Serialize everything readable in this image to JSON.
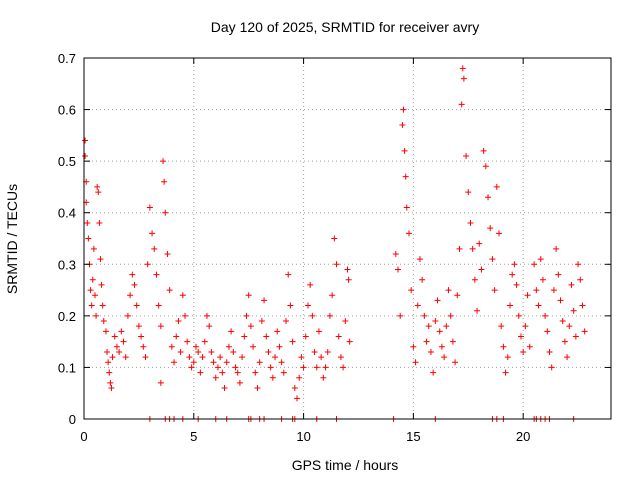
{
  "chart_data": {
    "type": "scatter",
    "title": "Day 120 of 2025, SRMTID for receiver avry",
    "xlabel": "GPS time / hours",
    "ylabel": "SRMTID / TECUs",
    "xlim": [
      0,
      24
    ],
    "ylim": [
      0,
      0.7
    ],
    "xticks": [
      0,
      5,
      10,
      15,
      20
    ],
    "yticks": [
      0,
      0.1,
      0.2,
      0.3,
      0.4,
      0.5,
      0.6,
      0.7
    ],
    "xtick_labels": [
      "0",
      "5",
      "10",
      "15",
      "20"
    ],
    "ytick_labels": [
      "0",
      "0.1",
      "0.2",
      "0.3",
      "0.4",
      "0.5",
      "0.6",
      "0.7"
    ],
    "grid": true,
    "marker": "+",
    "color": "#ff0000",
    "gap_hours": [
      12.2,
      14.1
    ],
    "series": [
      {
        "name": "SRMTID",
        "points": [
          [
            0.05,
            0.54
          ],
          [
            0.05,
            0.51
          ],
          [
            0.1,
            0.46
          ],
          [
            0.1,
            0.42
          ],
          [
            0.15,
            0.38
          ],
          [
            0.2,
            0.35
          ],
          [
            0.25,
            0.3
          ],
          [
            0.3,
            0.25
          ],
          [
            0.35,
            0.22
          ],
          [
            0.4,
            0.27
          ],
          [
            0.45,
            0.33
          ],
          [
            0.5,
            0.24
          ],
          [
            0.55,
            0.2
          ],
          [
            0.6,
            0.45
          ],
          [
            0.65,
            0.44
          ],
          [
            0.7,
            0.38
          ],
          [
            0.75,
            0.31
          ],
          [
            0.8,
            0.26
          ],
          [
            0.85,
            0.22
          ],
          [
            0.9,
            0.19
          ],
          [
            1.0,
            0.17
          ],
          [
            1.05,
            0.13
          ],
          [
            1.1,
            0.11
          ],
          [
            1.15,
            0.09
          ],
          [
            1.2,
            0.07
          ],
          [
            1.25,
            0.06
          ],
          [
            1.3,
            0.12
          ],
          [
            1.4,
            0.16
          ],
          [
            1.5,
            0.14
          ],
          [
            1.6,
            0.13
          ],
          [
            1.7,
            0.17
          ],
          [
            1.8,
            0.15
          ],
          [
            1.9,
            0.12
          ],
          [
            2.0,
            0.2
          ],
          [
            2.1,
            0.24
          ],
          [
            2.2,
            0.28
          ],
          [
            2.3,
            0.26
          ],
          [
            2.4,
            0.22
          ],
          [
            2.5,
            0.18
          ],
          [
            2.6,
            0.16
          ],
          [
            2.7,
            0.14
          ],
          [
            2.8,
            0.12
          ],
          [
            2.9,
            0.3
          ],
          [
            3.0,
            0.41
          ],
          [
            3.1,
            0.36
          ],
          [
            3.2,
            0.33
          ],
          [
            3.3,
            0.28
          ],
          [
            3.4,
            0.22
          ],
          [
            3.5,
            0.18
          ],
          [
            3.5,
            0.07
          ],
          [
            3.6,
            0.5
          ],
          [
            3.65,
            0.46
          ],
          [
            3.7,
            0.4
          ],
          [
            3.8,
            0.32
          ],
          [
            3.9,
            0.25
          ],
          [
            4.0,
            0.14
          ],
          [
            4.1,
            0.11
          ],
          [
            4.2,
            0.16
          ],
          [
            4.3,
            0.19
          ],
          [
            4.4,
            0.13
          ],
          [
            4.5,
            0.24
          ],
          [
            4.6,
            0.2
          ],
          [
            4.7,
            0.15
          ],
          [
            4.8,
            0.12
          ],
          [
            4.9,
            0.1
          ],
          [
            5.0,
            0.11
          ],
          [
            5.1,
            0.14
          ],
          [
            5.2,
            0.13
          ],
          [
            5.3,
            0.09
          ],
          [
            5.4,
            0.12
          ],
          [
            5.5,
            0.15
          ],
          [
            5.6,
            0.2
          ],
          [
            5.7,
            0.18
          ],
          [
            5.8,
            0.13
          ],
          [
            5.9,
            0.11
          ],
          [
            6.0,
            0.08
          ],
          [
            6.1,
            0.1
          ],
          [
            6.2,
            0.12
          ],
          [
            6.3,
            0.09
          ],
          [
            6.4,
            0.06
          ],
          [
            6.5,
            0.11
          ],
          [
            6.6,
            0.14
          ],
          [
            6.7,
            0.17
          ],
          [
            6.8,
            0.13
          ],
          [
            6.9,
            0.1
          ],
          [
            7.0,
            0.09
          ],
          [
            7.1,
            0.07
          ],
          [
            7.2,
            0.12
          ],
          [
            7.3,
            0.16
          ],
          [
            7.4,
            0.2
          ],
          [
            7.5,
            0.24
          ],
          [
            7.6,
            0.18
          ],
          [
            7.7,
            0.14
          ],
          [
            7.8,
            0.09
          ],
          [
            7.9,
            0.06
          ],
          [
            8.0,
            0.11
          ],
          [
            8.1,
            0.19
          ],
          [
            8.2,
            0.23
          ],
          [
            8.3,
            0.16
          ],
          [
            8.4,
            0.13
          ],
          [
            8.5,
            0.1
          ],
          [
            8.6,
            0.08
          ],
          [
            8.7,
            0.12
          ],
          [
            8.8,
            0.17
          ],
          [
            8.9,
            0.14
          ],
          [
            9.0,
            0.11
          ],
          [
            9.1,
            0.09
          ],
          [
            9.2,
            0.19
          ],
          [
            9.3,
            0.28
          ],
          [
            9.4,
            0.22
          ],
          [
            9.5,
            0.15
          ],
          [
            9.6,
            0.06
          ],
          [
            9.7,
            0.04
          ],
          [
            9.8,
            0.08
          ],
          [
            9.9,
            0.12
          ],
          [
            10.0,
            0.1
          ],
          [
            10.1,
            0.16
          ],
          [
            10.2,
            0.22
          ],
          [
            10.3,
            0.26
          ],
          [
            10.4,
            0.2
          ],
          [
            10.5,
            0.13
          ],
          [
            10.6,
            0.1
          ],
          [
            10.7,
            0.17
          ],
          [
            10.8,
            0.12
          ],
          [
            10.9,
            0.08
          ],
          [
            11.0,
            0.1
          ],
          [
            11.1,
            0.13
          ],
          [
            11.2,
            0.2
          ],
          [
            11.3,
            0.24
          ],
          [
            11.4,
            0.35
          ],
          [
            11.5,
            0.3
          ],
          [
            11.6,
            0.16
          ],
          [
            11.7,
            0.12
          ],
          [
            11.8,
            0.1
          ],
          [
            11.9,
            0.19
          ],
          [
            12.0,
            0.29
          ],
          [
            12.05,
            0.27
          ],
          [
            12.1,
            0.15
          ],
          [
            14.2,
            0.32
          ],
          [
            14.3,
            0.29
          ],
          [
            14.4,
            0.2
          ],
          [
            14.5,
            0.57
          ],
          [
            14.55,
            0.6
          ],
          [
            14.6,
            0.52
          ],
          [
            14.65,
            0.47
          ],
          [
            14.7,
            0.41
          ],
          [
            14.8,
            0.36
          ],
          [
            14.9,
            0.25
          ],
          [
            15.0,
            0.14
          ],
          [
            15.1,
            0.11
          ],
          [
            15.2,
            0.22
          ],
          [
            15.3,
            0.31
          ],
          [
            15.4,
            0.27
          ],
          [
            15.5,
            0.2
          ],
          [
            15.6,
            0.15
          ],
          [
            15.7,
            0.18
          ],
          [
            15.8,
            0.13
          ],
          [
            15.9,
            0.09
          ],
          [
            16.0,
            0.19
          ],
          [
            16.1,
            0.23
          ],
          [
            16.2,
            0.17
          ],
          [
            16.3,
            0.14
          ],
          [
            16.4,
            0.12
          ],
          [
            16.5,
            0.18
          ],
          [
            16.6,
            0.25
          ],
          [
            16.7,
            0.2
          ],
          [
            16.8,
            0.15
          ],
          [
            16.9,
            0.11
          ],
          [
            17.0,
            0.24
          ],
          [
            17.1,
            0.33
          ],
          [
            17.2,
            0.61
          ],
          [
            17.25,
            0.68
          ],
          [
            17.3,
            0.66
          ],
          [
            17.4,
            0.51
          ],
          [
            17.5,
            0.44
          ],
          [
            17.6,
            0.38
          ],
          [
            17.7,
            0.33
          ],
          [
            17.8,
            0.27
          ],
          [
            17.9,
            0.21
          ],
          [
            18.0,
            0.34
          ],
          [
            18.1,
            0.29
          ],
          [
            18.2,
            0.52
          ],
          [
            18.3,
            0.49
          ],
          [
            18.4,
            0.43
          ],
          [
            18.5,
            0.37
          ],
          [
            18.6,
            0.31
          ],
          [
            18.7,
            0.25
          ],
          [
            18.8,
            0.45
          ],
          [
            18.9,
            0.36
          ],
          [
            19.0,
            0.18
          ],
          [
            19.1,
            0.14
          ],
          [
            19.2,
            0.09
          ],
          [
            19.3,
            0.12
          ],
          [
            19.4,
            0.22
          ],
          [
            19.5,
            0.28
          ],
          [
            19.6,
            0.3
          ],
          [
            19.7,
            0.26
          ],
          [
            19.8,
            0.2
          ],
          [
            19.9,
            0.16
          ],
          [
            20.0,
            0.13
          ],
          [
            20.1,
            0.18
          ],
          [
            20.2,
            0.24
          ],
          [
            20.3,
            0.14
          ],
          [
            20.5,
            0.3
          ],
          [
            20.6,
            0.25
          ],
          [
            20.7,
            0.22
          ],
          [
            20.8,
            0.31
          ],
          [
            20.9,
            0.27
          ],
          [
            21.0,
            0.2
          ],
          [
            21.1,
            0.17
          ],
          [
            21.2,
            0.13
          ],
          [
            21.3,
            0.1
          ],
          [
            21.4,
            0.25
          ],
          [
            21.5,
            0.33
          ],
          [
            21.6,
            0.28
          ],
          [
            21.7,
            0.23
          ],
          [
            21.8,
            0.19
          ],
          [
            21.9,
            0.15
          ],
          [
            22.0,
            0.12
          ],
          [
            22.1,
            0.18
          ],
          [
            22.2,
            0.26
          ],
          [
            22.3,
            0.21
          ],
          [
            22.4,
            0.16
          ],
          [
            22.5,
            0.3
          ],
          [
            22.6,
            0.27
          ],
          [
            22.7,
            0.22
          ],
          [
            22.8,
            0.17
          ]
        ]
      }
    ],
    "zero_points_x": [
      3.0,
      3.7,
      3.9,
      4.1,
      4.5,
      5.2,
      6.0,
      6.5,
      7.5,
      7.6,
      8.0,
      8.2,
      9.0,
      9.5,
      9.6,
      10.6,
      11.5,
      14.1,
      16.0,
      18.6,
      18.8,
      19.1,
      20.5,
      20.6,
      20.8,
      21.0,
      21.2,
      22.3
    ]
  }
}
